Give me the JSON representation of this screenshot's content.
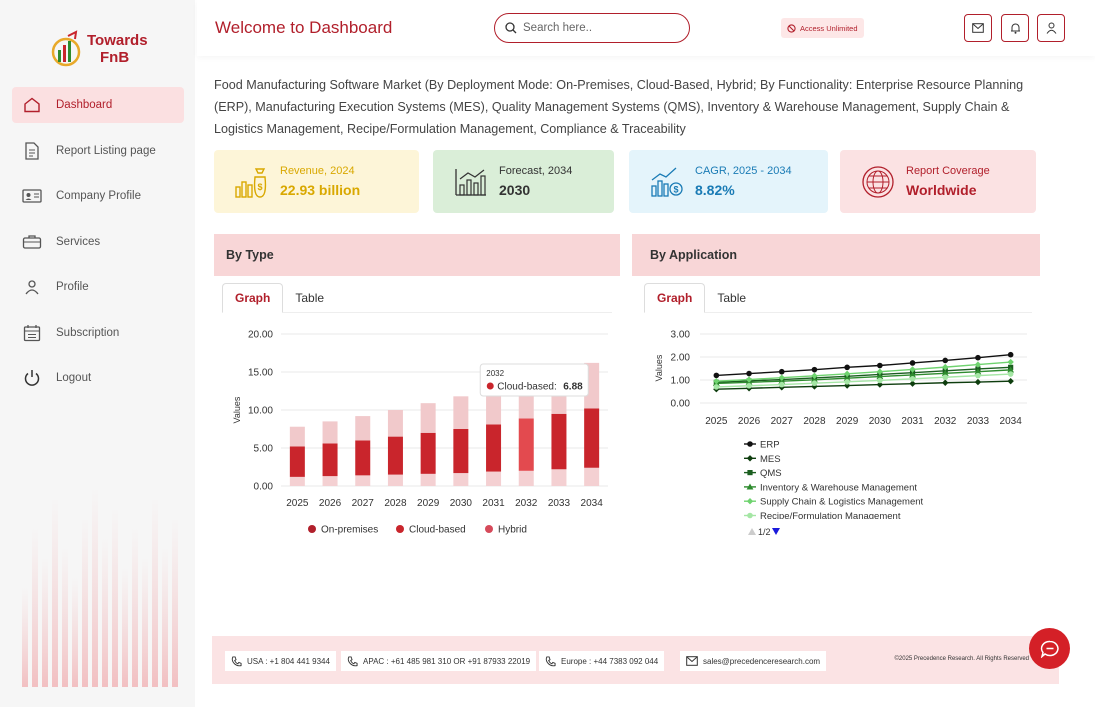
{
  "brand": {
    "line1": "Towards",
    "line2": "FnB"
  },
  "sidebar": {
    "items": [
      {
        "label": "Dashboard",
        "icon": "home-icon",
        "active": true
      },
      {
        "label": "Report Listing page",
        "icon": "document-icon"
      },
      {
        "label": "Company Profile",
        "icon": "id-card-icon"
      },
      {
        "label": "Services",
        "icon": "briefcase-icon"
      },
      {
        "label": "Profile",
        "icon": "user-icon"
      },
      {
        "label": "Subscription",
        "icon": "calendar-icon"
      },
      {
        "label": "Logout",
        "icon": "power-icon"
      }
    ]
  },
  "header": {
    "title": "Welcome to Dashboard",
    "search_placeholder": "Search here..",
    "access_badge": "Access Unlimited",
    "icons": [
      "mail-icon",
      "bell-icon",
      "user-icon"
    ]
  },
  "report": {
    "title": "Food Manufacturing Software Market (By Deployment Mode: On-Premises, Cloud-Based, Hybrid; By Functionality: Enterprise Resource Planning (ERP), Manufacturing Execution Systems (MES), Quality Management Systems (QMS), Inventory & Warehouse Management, Supply Chain & Logistics Management, Recipe/Formulation Management, Compliance & Traceability"
  },
  "stats": [
    {
      "label": "Revenue, 2024",
      "value": "22.93 billion",
      "bg": "#fdf5d8",
      "color": "#d9a800",
      "icon": "money-bag-icon"
    },
    {
      "label": "Forecast, 2034",
      "value": "2030",
      "bg": "#daeed8",
      "color": "#333333",
      "icon": "bar-chart-icon"
    },
    {
      "label": "CAGR, 2025 - 2034",
      "value": "8.82%",
      "bg": "#e4f4fb",
      "color": "#1a7bb5",
      "icon": "growth-chart-icon"
    },
    {
      "label": "Report Coverage",
      "value": "Worldwide",
      "bg": "#fbe2e3",
      "color": "#b11f2b",
      "icon": "globe-icon"
    }
  ],
  "panels": {
    "by_type": {
      "title": "By Type",
      "tabs": [
        "Graph",
        "Table"
      ],
      "active_tab": "Graph"
    },
    "by_application": {
      "title": "By Application",
      "tabs": [
        "Graph",
        "Table"
      ],
      "active_tab": "Graph"
    }
  },
  "chart_data": [
    {
      "type": "bar",
      "stacked": true,
      "categories": [
        "2025",
        "2026",
        "2027",
        "2028",
        "2029",
        "2030",
        "2031",
        "2032",
        "2033",
        "2034"
      ],
      "ylabel": "Values",
      "ylim": [
        0,
        20
      ],
      "yticks": [
        "0.00",
        "5.00",
        "10.00",
        "15.00",
        "20.00"
      ],
      "series": [
        {
          "name": "On-premises",
          "color": "#c9252c",
          "values": [
            1.2,
            1.3,
            1.4,
            1.5,
            1.6,
            1.7,
            1.9,
            2.0,
            2.2,
            2.4
          ]
        },
        {
          "name": "Cloud-based",
          "color": "#c9252c",
          "values": [
            4.0,
            4.3,
            4.6,
            5.0,
            5.4,
            5.8,
            6.2,
            6.88,
            7.3,
            7.8
          ]
        },
        {
          "name": "Hybrid",
          "color": "#f0c7c9",
          "values": [
            2.6,
            2.9,
            3.2,
            3.5,
            3.9,
            4.3,
            4.7,
            5.2,
            5.6,
            6.0
          ]
        }
      ],
      "legend_colors": [
        "#b11f2b",
        "#c9252c",
        "#d64a5a"
      ],
      "tooltip": {
        "year": "2032",
        "series": "Cloud-based",
        "value": "6.88"
      },
      "legend_position": "bottom"
    },
    {
      "type": "line",
      "categories": [
        "2025",
        "2026",
        "2027",
        "2028",
        "2029",
        "2030",
        "2031",
        "2032",
        "2033",
        "2034"
      ],
      "ylabel": "Values",
      "ylim": [
        0,
        3
      ],
      "yticks": [
        "0.00",
        "1.00",
        "2.00",
        "3.00"
      ],
      "series": [
        {
          "name": "ERP",
          "color": "#111111",
          "marker": "circle",
          "values": [
            1.2,
            1.28,
            1.36,
            1.45,
            1.55,
            1.63,
            1.74,
            1.85,
            1.97,
            2.1
          ]
        },
        {
          "name": "MES",
          "color": "#0e3d0e",
          "marker": "diamond",
          "values": [
            0.6,
            0.64,
            0.68,
            0.72,
            0.76,
            0.8,
            0.84,
            0.88,
            0.91,
            0.95
          ]
        },
        {
          "name": "QMS",
          "color": "#1b5e20",
          "marker": "square",
          "values": [
            0.9,
            0.96,
            1.02,
            1.09,
            1.16,
            1.24,
            1.32,
            1.4,
            1.48,
            1.55
          ]
        },
        {
          "name": "Inventory & Warehouse Management",
          "color": "#2e8b2e",
          "marker": "triangle",
          "values": [
            0.85,
            0.9,
            0.95,
            1.01,
            1.08,
            1.15,
            1.22,
            1.29,
            1.36,
            1.44
          ]
        },
        {
          "name": "Supply Chain & Logistics Management",
          "color": "#6fd36f",
          "marker": "diamond",
          "values": [
            0.95,
            1.02,
            1.1,
            1.18,
            1.27,
            1.36,
            1.46,
            1.56,
            1.67,
            1.78
          ]
        },
        {
          "name": "Recipe/Formulation Management",
          "color": "#a5e6a5",
          "marker": "circle",
          "values": [
            0.7,
            0.75,
            0.8,
            0.86,
            0.92,
            0.98,
            1.05,
            1.12,
            1.19,
            1.26
          ]
        }
      ],
      "legend_page": "1/2",
      "legend_position": "bottom"
    }
  ],
  "footer": {
    "us": "USA : +1 804 441 9344",
    "apac": "APAC : +61 485 981 310 OR +91 87933 22019",
    "europe": "Europe : +44 7383 092 044",
    "email": "sales@precedenceresearch.com",
    "copyright": "©2025 Precedence Research. All Rights Reserved"
  },
  "colors": {
    "accent": "#b11f2b",
    "panel_header": "#f8d6d7"
  }
}
